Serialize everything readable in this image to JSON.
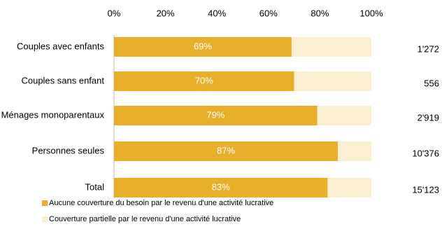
{
  "chart_data": {
    "type": "stacked-barh",
    "categories": [
      "Couples avec enfants",
      "Couples sans enfant",
      "Ménages monoparentaux",
      "Personnes seules",
      "Total"
    ],
    "series": [
      {
        "name": "Aucune couverture du besoin par le revenu d'une activité lucrative",
        "color": "#e8b02a",
        "values": [
          69,
          70,
          79,
          87,
          83
        ],
        "value_labels": [
          "69%",
          "70%",
          "79%",
          "87%",
          "83%"
        ]
      },
      {
        "name": "Couverture partielle par le revenu d'une activité lucrative",
        "color": "#fdf0d2",
        "values": [
          31,
          30,
          21,
          13,
          17
        ]
      }
    ],
    "counts": [
      {
        "value": 1272,
        "label": "1'272"
      },
      {
        "value": 556,
        "label": "556"
      },
      {
        "value": 2919,
        "label": "2'919"
      },
      {
        "value": 10376,
        "label": "10'376"
      },
      {
        "value": 15123,
        "label": "15'123"
      }
    ],
    "xlim": [
      0,
      100
    ],
    "xticks": [
      {
        "value": 0,
        "label": "0%"
      },
      {
        "value": 20,
        "label": "20%"
      },
      {
        "value": 40,
        "label": "40%"
      },
      {
        "value": 60,
        "label": "60%"
      },
      {
        "value": 80,
        "label": "80%"
      },
      {
        "value": 100,
        "label": "100%"
      }
    ]
  }
}
